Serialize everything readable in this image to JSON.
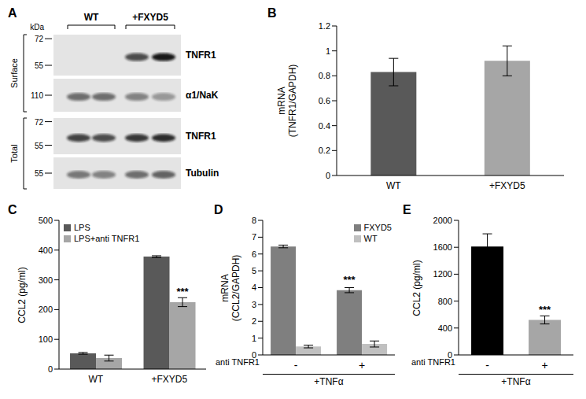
{
  "panel_a": {
    "panel": "A",
    "unit": "kDa",
    "groups": [
      "WT",
      "+FXYD5"
    ],
    "sections": [
      {
        "label": "Surface",
        "blots": [
          {
            "label": "TNFR1",
            "markers": [
              72,
              55
            ]
          },
          {
            "label": "α1/NaK",
            "markers": [
              110
            ]
          }
        ]
      },
      {
        "label": "Total",
        "blots": [
          {
            "label": "TNFR1",
            "markers": [
              72,
              55
            ]
          },
          {
            "label": "Tubulin",
            "markers": [
              55
            ]
          }
        ]
      }
    ]
  },
  "chart_data": [
    {
      "panel": "B",
      "type": "bar",
      "categories": [
        "WT",
        "+FXYD5"
      ],
      "values": [
        0.83,
        0.92
      ],
      "errors": [
        0.11,
        0.12
      ],
      "colors": [
        "#595959",
        "#a6a6a6"
      ],
      "ylabel": [
        "mRNA",
        "(TNFR1/GAPDH)"
      ],
      "ylim": [
        0,
        1.2
      ],
      "yticks": [
        0,
        0.2,
        0.4,
        0.6,
        0.8,
        1,
        1.2
      ]
    },
    {
      "panel": "C",
      "type": "bar",
      "categories": [
        "WT",
        "+FXYD5"
      ],
      "series": [
        {
          "name": "LPS",
          "color": "#595959",
          "values": [
            53,
            378
          ],
          "errors": [
            3,
            3
          ]
        },
        {
          "name": "LPS+anti TNFR1",
          "color": "#a6a6a6",
          "values": [
            37,
            225
          ],
          "errors": [
            10,
            15
          ]
        }
      ],
      "ylabel": [
        "CCL2 (pg/ml)"
      ],
      "ylim": [
        0,
        500
      ],
      "yticks": [
        0,
        100,
        200,
        300,
        400,
        500
      ],
      "legend": "upper left",
      "annotations": [
        {
          "text": "***",
          "category": "+FXYD5",
          "series": "LPS+anti TNFR1"
        }
      ]
    },
    {
      "panel": "D",
      "type": "bar",
      "categories": [
        "-",
        "+"
      ],
      "series": [
        {
          "name": "FXYD5",
          "color": "#7f7f7f",
          "values": [
            6.45,
            3.85
          ],
          "errors": [
            0.08,
            0.15
          ]
        },
        {
          "name": "WT",
          "color": "#c0c0c0",
          "values": [
            0.5,
            0.65
          ],
          "errors": [
            0.08,
            0.18
          ]
        }
      ],
      "xlabel": "anti TNFR1",
      "subtitle": "+TNFα",
      "ylabel": [
        "mRNA",
        "(CCL2/GAPDH)"
      ],
      "ylim": [
        0,
        8
      ],
      "yticks": [
        0,
        1,
        2,
        3,
        4,
        5,
        6,
        7,
        8
      ],
      "legend": "upper right",
      "annotations": [
        {
          "text": "***",
          "category": "+",
          "series": "FXYD5"
        }
      ]
    },
    {
      "panel": "E",
      "type": "bar",
      "categories": [
        "-",
        "+"
      ],
      "values": [
        1610,
        520
      ],
      "errors": [
        190,
        60
      ],
      "colors": [
        "#000000",
        "#a6a6a6"
      ],
      "xlabel": "anti TNFR1",
      "subtitle": "+TNFα",
      "ylabel": [
        "CCL2 (pg/ml)"
      ],
      "ylim": [
        0,
        2000
      ],
      "yticks": [
        0,
        400,
        800,
        1200,
        1600,
        2000
      ],
      "annotations": [
        {
          "text": "***",
          "category": "+"
        }
      ]
    }
  ]
}
